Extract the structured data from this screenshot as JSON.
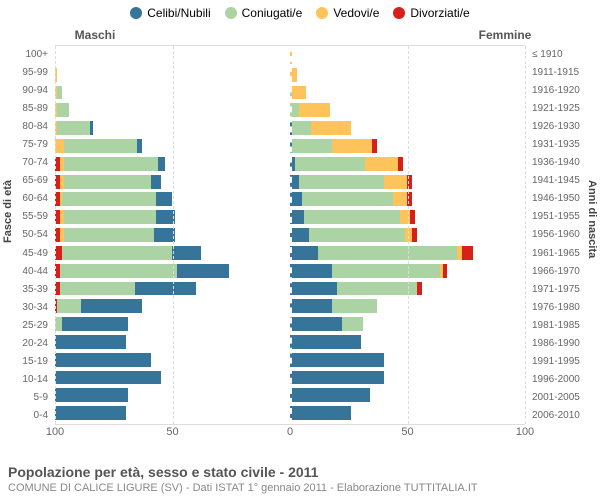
{
  "chart": {
    "type": "population-pyramid",
    "background_color": "#ffffff",
    "grid_color": "#dddddd",
    "xmax": 100,
    "xtick_step": 50,
    "legend": [
      {
        "label": "Celibi/Nubili",
        "color": "#36749a"
      },
      {
        "label": "Coniugati/e",
        "color": "#acd3a3"
      },
      {
        "label": "Vedovi/e",
        "color": "#fec35b"
      },
      {
        "label": "Divorziati/e",
        "color": "#d8201a"
      }
    ],
    "gender_left": "Maschi",
    "gender_right": "Femmine",
    "axis_title_left": "Fasce di età",
    "axis_title_right": "Anni di nascita",
    "age_labels": [
      "100+",
      "95-99",
      "90-94",
      "85-89",
      "80-84",
      "75-79",
      "70-74",
      "65-69",
      "60-64",
      "55-59",
      "50-54",
      "45-49",
      "40-44",
      "35-39",
      "30-34",
      "25-29",
      "20-24",
      "15-19",
      "10-14",
      "5-9",
      "0-4"
    ],
    "year_labels": [
      "≤ 1910",
      "1911-1915",
      "1916-1920",
      "1921-1925",
      "1926-1930",
      "1931-1935",
      "1936-1940",
      "1941-1945",
      "1946-1950",
      "1951-1955",
      "1956-1960",
      "1961-1965",
      "1966-1970",
      "1971-1975",
      "1976-1980",
      "1981-1985",
      "1986-1990",
      "1991-1995",
      "1996-2000",
      "2001-2005",
      "2006-2010"
    ],
    "rows": [
      {
        "male": [
          0,
          0,
          0,
          0
        ],
        "female": [
          0,
          0,
          1,
          0
        ]
      },
      {
        "male": [
          0,
          0,
          1,
          0
        ],
        "female": [
          0,
          0,
          3,
          0
        ]
      },
      {
        "male": [
          0,
          2,
          1,
          0
        ],
        "female": [
          0,
          1,
          6,
          0
        ]
      },
      {
        "male": [
          0,
          5,
          1,
          0
        ],
        "female": [
          0,
          4,
          13,
          0
        ]
      },
      {
        "male": [
          1,
          14,
          1,
          0
        ],
        "female": [
          1,
          8,
          17,
          0
        ]
      },
      {
        "male": [
          2,
          31,
          4,
          0
        ],
        "female": [
          1,
          17,
          17,
          2
        ]
      },
      {
        "male": [
          3,
          40,
          2,
          2
        ],
        "female": [
          2,
          30,
          14,
          2
        ]
      },
      {
        "male": [
          4,
          37,
          2,
          2
        ],
        "female": [
          4,
          36,
          10,
          2
        ]
      },
      {
        "male": [
          7,
          40,
          1,
          2
        ],
        "female": [
          5,
          39,
          6,
          2
        ]
      },
      {
        "male": [
          8,
          39,
          2,
          2
        ],
        "female": [
          6,
          41,
          4,
          2
        ]
      },
      {
        "male": [
          9,
          38,
          2,
          2
        ],
        "female": [
          8,
          41,
          3,
          2
        ]
      },
      {
        "male": [
          12,
          47,
          0,
          3
        ],
        "female": [
          12,
          59,
          2,
          5
        ]
      },
      {
        "male": [
          22,
          50,
          0,
          2
        ],
        "female": [
          18,
          46,
          1,
          2
        ]
      },
      {
        "male": [
          26,
          32,
          0,
          2
        ],
        "female": [
          20,
          34,
          0,
          2
        ]
      },
      {
        "male": [
          26,
          10,
          0,
          1
        ],
        "female": [
          18,
          19,
          0,
          0
        ]
      },
      {
        "male": [
          28,
          3,
          0,
          0
        ],
        "female": [
          22,
          9,
          0,
          0
        ]
      },
      {
        "male": [
          30,
          0,
          0,
          0
        ],
        "female": [
          30,
          0,
          0,
          0
        ]
      },
      {
        "male": [
          41,
          0,
          0,
          0
        ],
        "female": [
          40,
          0,
          0,
          0
        ]
      },
      {
        "male": [
          45,
          0,
          0,
          0
        ],
        "female": [
          40,
          0,
          0,
          0
        ]
      },
      {
        "male": [
          31,
          0,
          0,
          0
        ],
        "female": [
          34,
          0,
          0,
          0
        ]
      },
      {
        "male": [
          30,
          0,
          0,
          0
        ],
        "female": [
          26,
          0,
          0,
          0
        ]
      }
    ],
    "xticks_left": [
      100,
      50,
      0
    ],
    "xticks_right": [
      50,
      100
    ]
  },
  "footer": {
    "title": "Popolazione per età, sesso e stato civile - 2011",
    "subtitle": "COMUNE DI CALICE LIGURE (SV) - Dati ISTAT 1° gennaio 2011 - Elaborazione TUTTITALIA.IT"
  }
}
